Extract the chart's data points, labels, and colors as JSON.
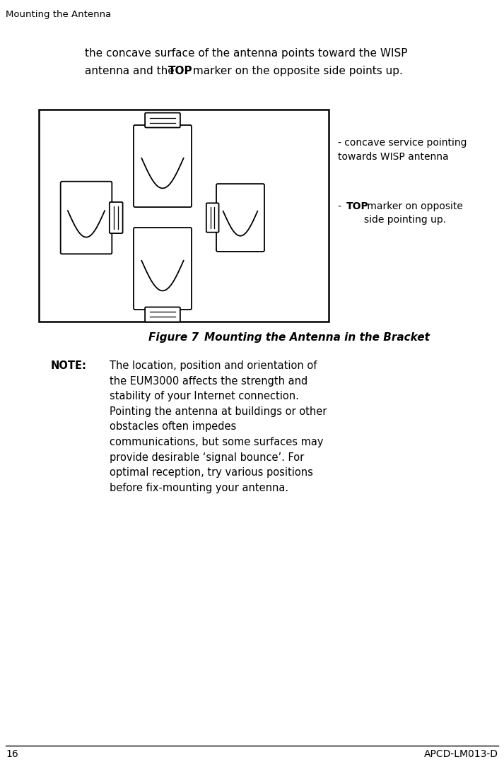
{
  "page_header": "Mounting the Antenna",
  "page_number": "16",
  "page_footer_right": "APCD-LM013-D",
  "intro_text_line1": "the concave surface of the antenna points toward the WISP",
  "intro_text_line2": "antenna and the ",
  "intro_text_bold": "TOP",
  "intro_text_line2_cont": " marker on the opposite side points up.",
  "figure_caption": "Figure 7",
  "figure_caption_rest": "    Mounting the Antenna in the Bracket",
  "note_label": "NOTE:",
  "note_text": "The location, position and orientation of\nthe EUM3000 affects the strength and\nstability of your Internet connection.\nPointing the antenna at buildings or other\nobstacles often impedes\ncommunications, but some surfaces may\nprovide desirable ‘signal bounce’. For\noptimal reception, try various positions\nbefore fix-mounting your antenna.",
  "annot1": "- concave service pointing\ntowards WISP antenna",
  "annot2_prefix": "- ",
  "annot2_bold": "TOP",
  "annot2_suffix": " marker on opposite\nside pointing up.",
  "bg_color": "#ffffff",
  "text_color": "#000000"
}
